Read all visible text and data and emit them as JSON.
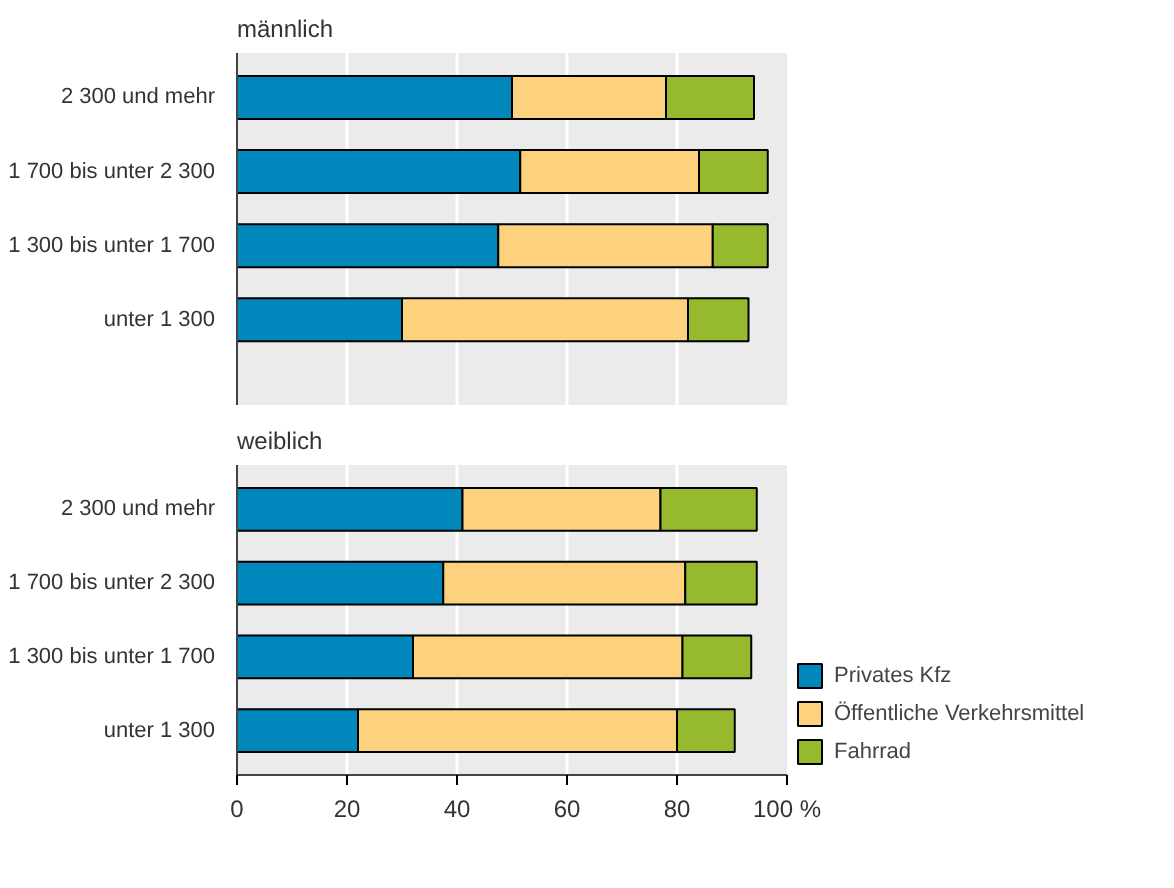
{
  "chart_data": [
    {
      "type": "bar",
      "orientation": "horizontal",
      "stacked": true,
      "title": "männlich",
      "categories": [
        "2 300 und mehr",
        "1 700 bis unter 2 300",
        "1 300 bis unter 1 700",
        "unter 1 300"
      ],
      "series": [
        {
          "color": "#0087bb",
          "values": [
            50,
            51.5,
            47.5,
            30
          ]
        },
        {
          "color": "#fdd27f",
          "values": [
            28,
            32.5,
            39,
            52
          ]
        },
        {
          "color": "#96b92d",
          "values": [
            16,
            12.5,
            10,
            11
          ]
        }
      ],
      "xlim": [
        0,
        100
      ],
      "xticks": [
        0,
        20,
        40,
        60,
        80,
        100
      ],
      "grid": "x",
      "tick_labels": "y"
    },
    {
      "type": "bar",
      "orientation": "horizontal",
      "stacked": true,
      "title": "weiblich",
      "categories": [
        "2 300 und mehr",
        "1 700 bis unter 2 300",
        "1 300 bis unter 1 700",
        "unter 1 300"
      ],
      "series": [
        {
          "name": "Privates Kfz",
          "color": "#0087bb",
          "values": [
            41,
            37.5,
            32,
            22
          ]
        },
        {
          "name": "Öffentliche Verkehrsmittel",
          "color": "#fdd27f",
          "values": [
            36,
            44,
            49,
            58
          ]
        },
        {
          "name": "Fahrrad",
          "color": "#96b92d",
          "values": [
            17.5,
            13,
            12.5,
            10.5
          ]
        }
      ],
      "xlim": [
        0,
        100
      ],
      "xticks": [
        0,
        20,
        40,
        60,
        80,
        {
          "value": 100,
          "label": "100 %"
        }
      ],
      "grid": "x",
      "legend": "right"
    }
  ]
}
